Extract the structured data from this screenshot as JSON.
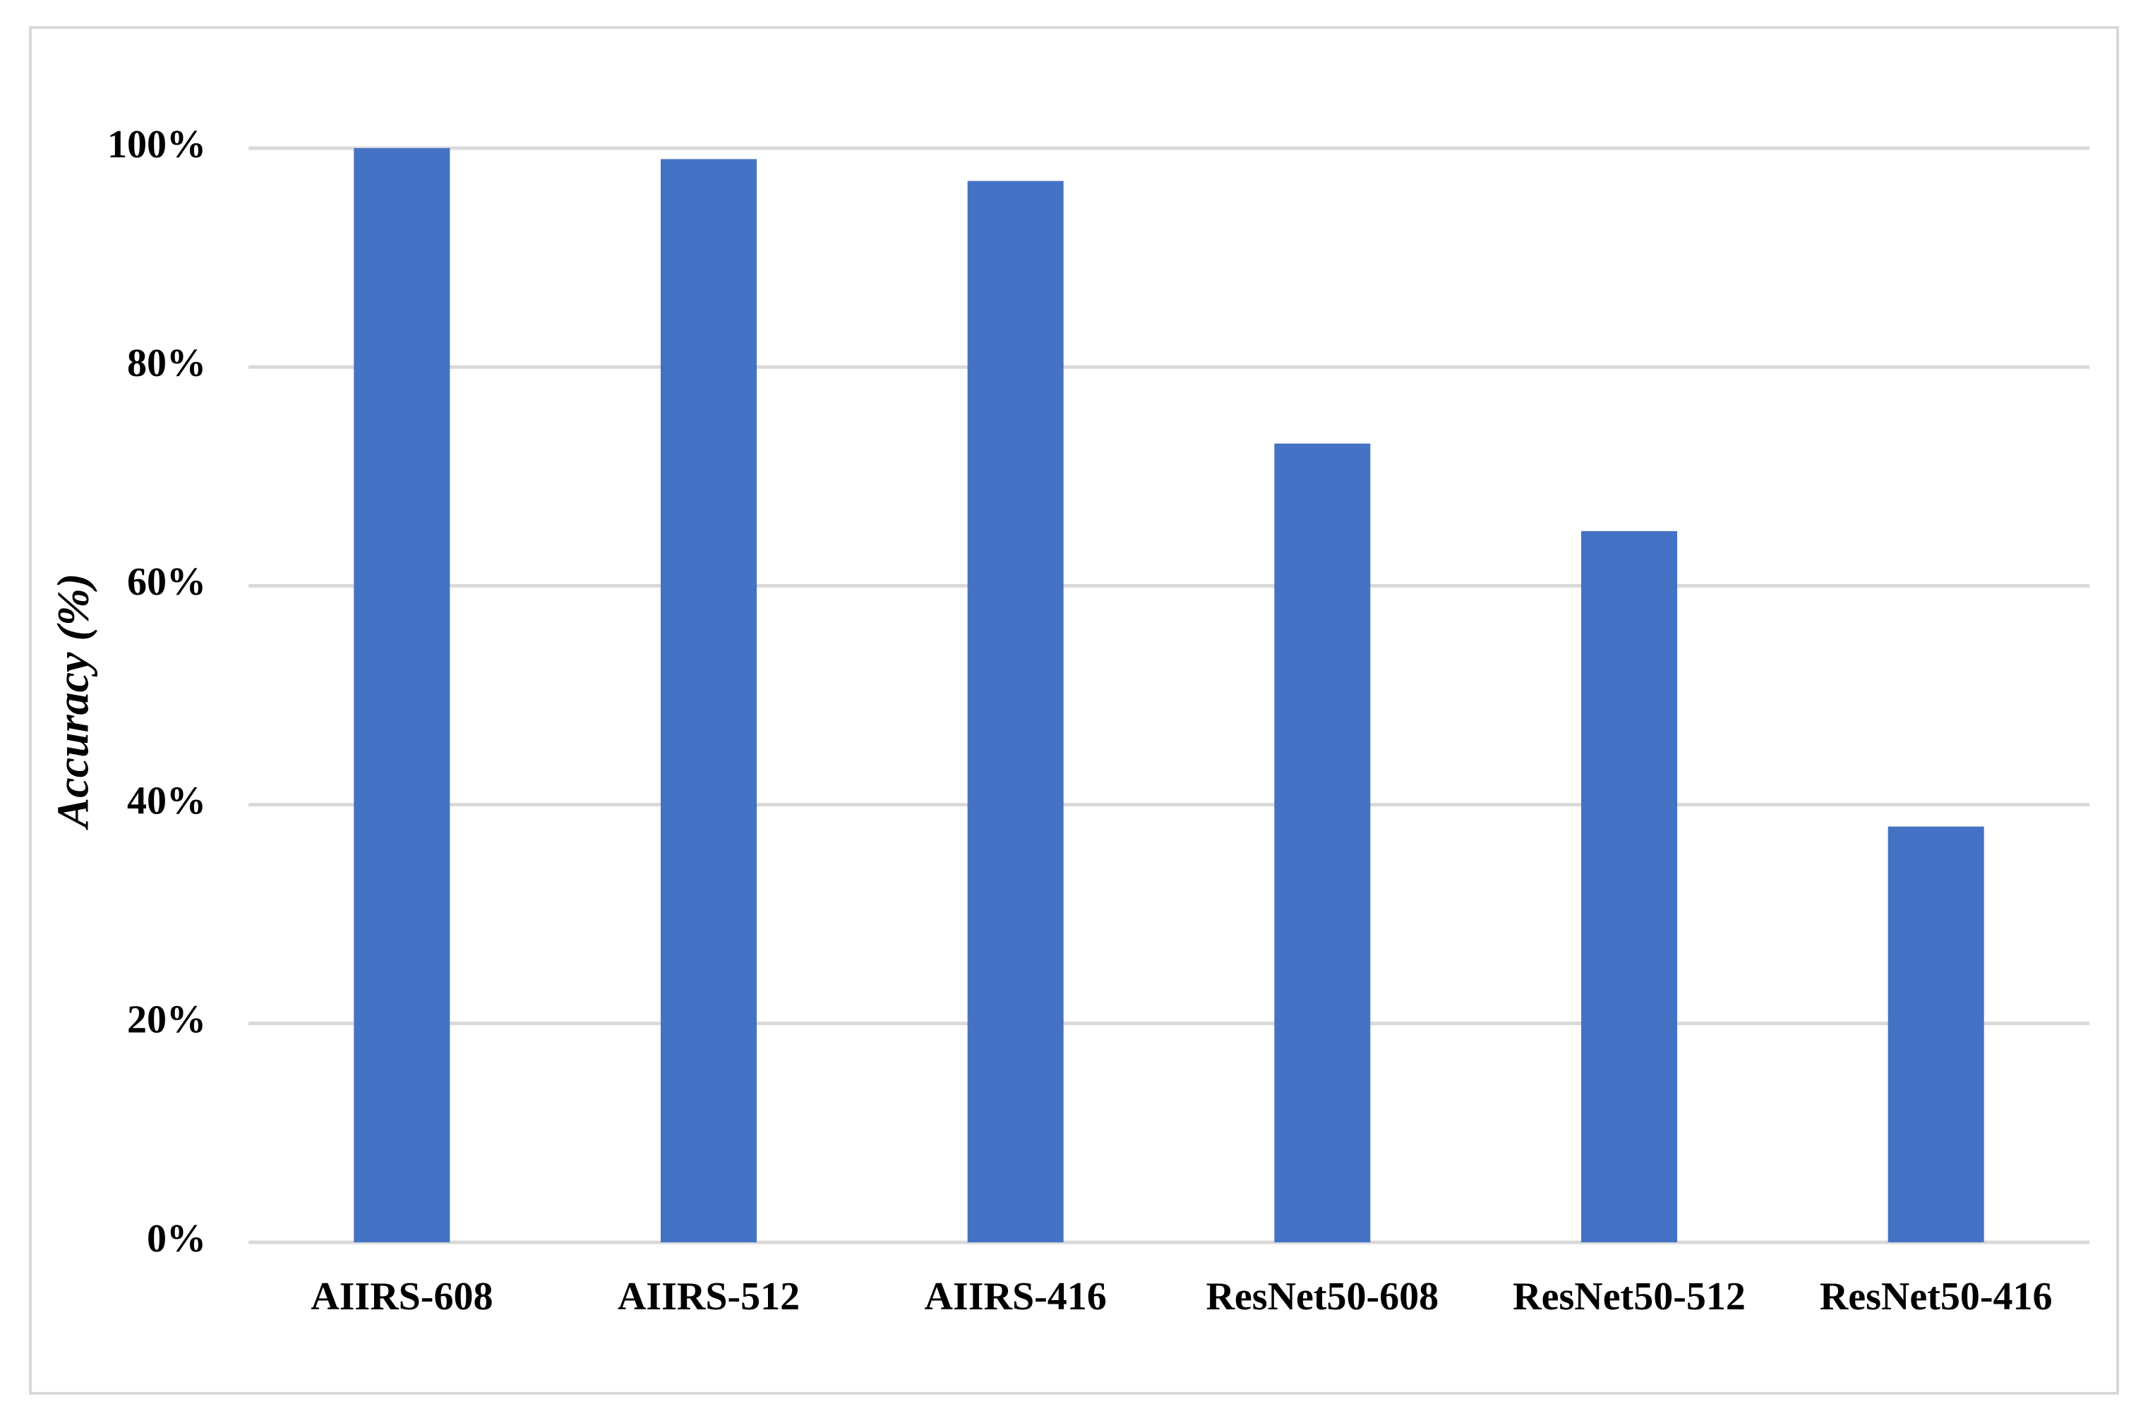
{
  "chart_data": {
    "type": "bar",
    "y_label": "Accuracy (%)",
    "categories": [
      "AIIRS-608",
      "AIIRS-512",
      "AIIRS-416",
      "ResNet50-608",
      "ResNet50-512",
      "ResNet50-416"
    ],
    "values": [
      100,
      99,
      97,
      73,
      65,
      38
    ],
    "color": "#4472c4",
    "ylim": [
      0,
      100
    ],
    "yticks": [
      {
        "value": 0,
        "label": "0%"
      },
      {
        "value": 20,
        "label": "20%"
      },
      {
        "value": 40,
        "label": "40%"
      },
      {
        "value": 60,
        "label": "60%"
      },
      {
        "value": 80,
        "label": "80%"
      },
      {
        "value": 100,
        "label": "100%"
      }
    ],
    "grid": true
  }
}
